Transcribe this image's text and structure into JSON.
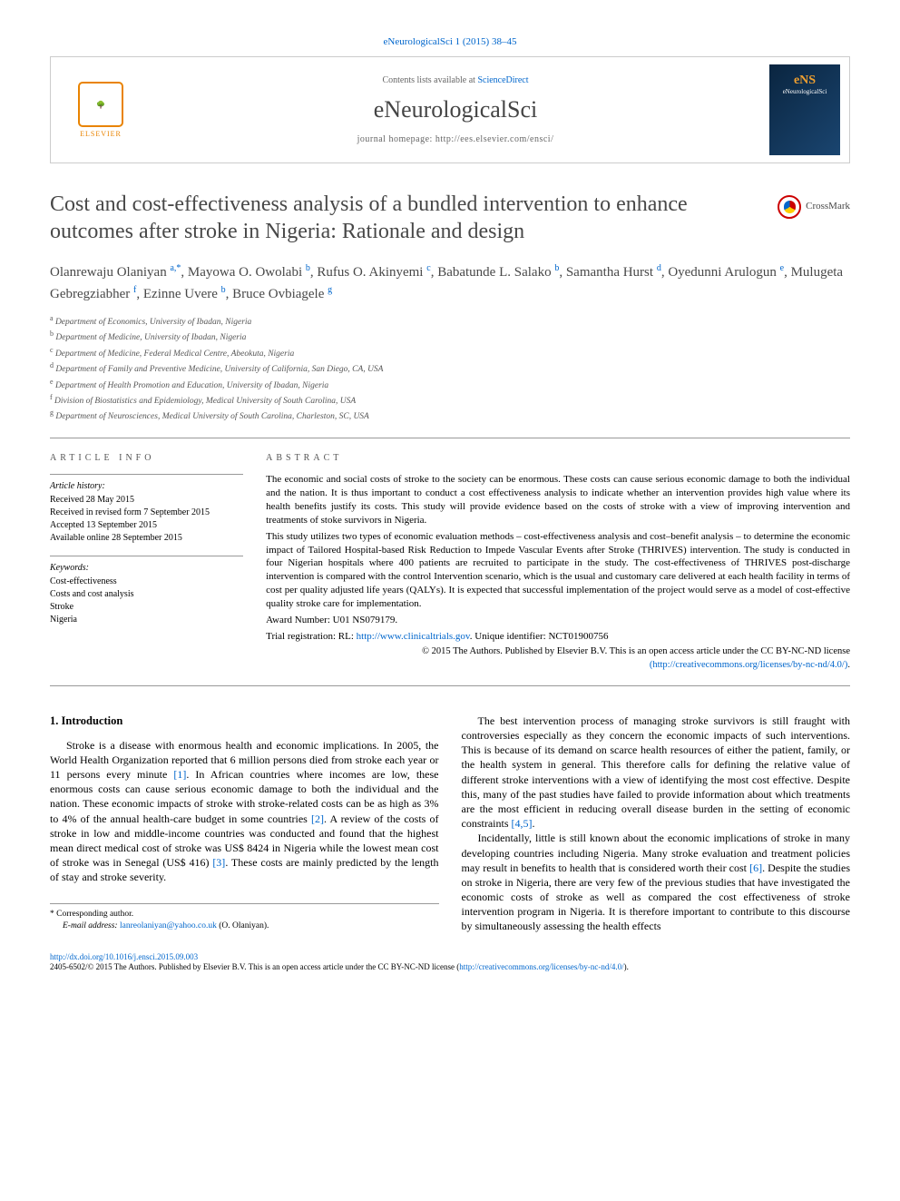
{
  "top_citation": "eNeurologicalSci 1 (2015) 38–45",
  "header": {
    "contents_prefix": "Contents lists available at ",
    "contents_link": "ScienceDirect",
    "journal_title": "eNeurologicalSci",
    "homepage_text": "journal homepage: http://ees.elsevier.com/ensci/",
    "elsevier_label": "ELSEVIER",
    "cover_ens": "eNS",
    "cover_sub": "eNeurologicalSci"
  },
  "crossmark_label": "CrossMark",
  "title": "Cost and cost-effectiveness analysis of a bundled intervention to enhance outcomes after stroke in Nigeria: Rationale and design",
  "authors_html_parts": [
    {
      "name": "Olanrewaju Olaniyan ",
      "sup": "a,",
      "star": "*"
    },
    {
      "name": ", Mayowa O. Owolabi ",
      "sup": "b"
    },
    {
      "name": ", Rufus O. Akinyemi ",
      "sup": "c"
    },
    {
      "name": ", Babatunde L. Salako ",
      "sup": "b"
    },
    {
      "name": ", Samantha Hurst ",
      "sup": "d"
    },
    {
      "name": ", Oyedunni Arulogun ",
      "sup": "e"
    },
    {
      "name": ", Mulugeta Gebregziabher ",
      "sup": "f"
    },
    {
      "name": ", Ezinne Uvere ",
      "sup": "b"
    },
    {
      "name": ", Bruce Ovbiagele ",
      "sup": "g"
    }
  ],
  "affiliations": [
    {
      "sup": "a",
      "text": " Department of Economics, University of Ibadan, Nigeria"
    },
    {
      "sup": "b",
      "text": " Department of Medicine, University of Ibadan, Nigeria"
    },
    {
      "sup": "c",
      "text": " Department of Medicine, Federal Medical Centre, Abeokuta, Nigeria"
    },
    {
      "sup": "d",
      "text": " Department of Family and Preventive Medicine, University of California, San Diego, CA, USA"
    },
    {
      "sup": "e",
      "text": " Department of Health Promotion and Education, University of Ibadan, Nigeria"
    },
    {
      "sup": "f",
      "text": " Division of Biostatistics and Epidemiology, Medical University of South Carolina, USA"
    },
    {
      "sup": "g",
      "text": " Department of Neurosciences, Medical University of South Carolina, Charleston, SC, USA"
    }
  ],
  "article_info": {
    "heading": "article info",
    "history_label": "Article history:",
    "history": [
      "Received 28 May 2015",
      "Received in revised form 7 September 2015",
      "Accepted 13 September 2015",
      "Available online 28 September 2015"
    ],
    "keywords_label": "Keywords:",
    "keywords": [
      "Cost-effectiveness",
      "Costs and cost analysis",
      "Stroke",
      "Nigeria"
    ]
  },
  "abstract": {
    "heading": "abstract",
    "p1": "The economic and social costs of stroke to the society can be enormous. These costs can cause serious economic damage to both the individual and the nation. It is thus important to conduct a cost effectiveness analysis to indicate whether an intervention provides high value where its health benefits justify its costs. This study will provide evidence based on the costs of stroke with a view of improving intervention and treatments of stoke survivors in Nigeria.",
    "p2": "This study utilizes two types of economic evaluation methods – cost-effectiveness analysis and cost–benefit analysis – to determine the economic impact of Tailored Hospital-based Risk Reduction to Impede Vascular Events after Stroke (THRIVES) intervention. The study is conducted in four Nigerian hospitals where 400 patients are recruited to participate in the study. The cost-effectiveness of THRIVES post-discharge intervention is compared with the control Intervention scenario, which is the usual and customary care delivered at each health facility in terms of cost per quality adjusted life years (QALYs). It is expected that successful implementation of the project would serve as a model of cost-effective quality stroke care for implementation.",
    "award": "Award Number: U01 NS079179.",
    "trial_prefix": "Trial registration: RL: ",
    "trial_link": "http://www.clinicaltrials.gov",
    "trial_suffix": ". Unique identifier: NCT01900756",
    "copyright": "© 2015 The Authors. Published by Elsevier B.V. This is an open access article under the CC BY-NC-ND license",
    "license_link_text": "(http://creativecommons.org/licenses/by-nc-nd/4.0/)",
    "license_suffix": "."
  },
  "body": {
    "section_heading": "1. Introduction",
    "col1_p1_a": "Stroke is a disease with enormous health and economic implications. In 2005, the World Health Organization reported that 6 million persons died from stroke each year or 11 persons every minute ",
    "col1_ref1": "[1]",
    "col1_p1_b": ". In African countries where incomes are low, these enormous costs can cause serious economic damage to both the individual and the nation. These economic impacts of stroke with stroke-related costs can be as high as 3% to 4% of the annual health-care budget in some countries ",
    "col1_ref2": "[2]",
    "col1_p1_c": ". A review of the costs of stroke in low and middle-income countries was conducted and found that the highest mean direct medical cost of stroke was US$ 8424 in Nigeria while the lowest mean cost of stroke was in Senegal (US$ 416) ",
    "col1_ref3": "[3]",
    "col1_p1_d": ". These costs are mainly predicted by the length of stay and stroke severity.",
    "corresponding_label": "* Corresponding author.",
    "email_label": "E-mail address: ",
    "email_link": "lanreolaniyan@yahoo.co.uk",
    "email_suffix": " (O. Olaniyan).",
    "col2_p1_a": "The best intervention process of managing stroke survivors is still fraught with controversies especially as they concern the economic impacts of such interventions. This is because of its demand on scarce health resources of either the patient, family, or the health system in general. This therefore calls for defining the relative value of different stroke interventions with a view of identifying the most cost effective. Despite this, many of the past studies have failed to provide information about which treatments are the most efficient in reducing overall disease burden in the setting of economic constraints ",
    "col2_ref45": "[4,5]",
    "col2_p1_b": ".",
    "col2_p2_a": "Incidentally, little is still known about the economic implications of stroke in many developing countries including Nigeria. Many stroke evaluation and treatment policies may result in benefits to health that is considered worth their cost ",
    "col2_ref6": "[6]",
    "col2_p2_b": ". Despite the studies on stroke in Nigeria, there are very few of the previous studies that have investigated the economic costs of stroke as well as compared the cost effectiveness of stroke intervention program in Nigeria. It is therefore important to contribute to this discourse by simultaneously assessing the health effects"
  },
  "footer": {
    "doi": "http://dx.doi.org/10.1016/j.ensci.2015.09.003",
    "issn_line_a": "2405-6502/© 2015 The Authors. Published by Elsevier B.V. This is an open access article under the CC BY-NC-ND license (",
    "issn_link": "http://creativecommons.org/licenses/by-nc-nd/4.0/",
    "issn_line_b": ")."
  }
}
